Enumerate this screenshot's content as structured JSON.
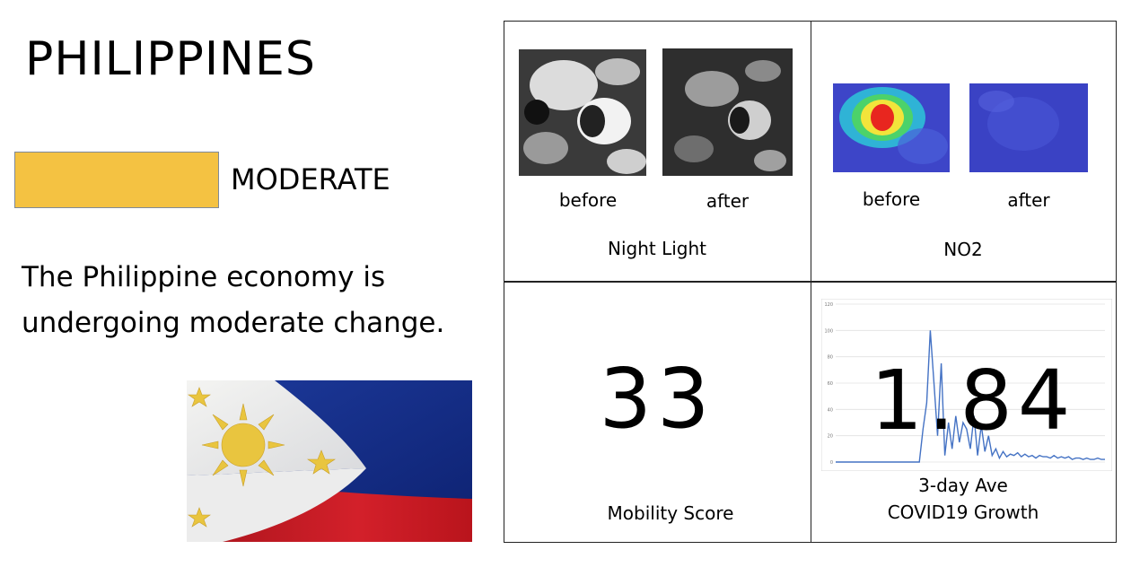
{
  "country": "PHILIPPINES",
  "status": {
    "label": "MODERATE",
    "color": "#F4C242"
  },
  "summary": "The Philippine economy is undergoing moderate change.",
  "flag": {
    "icon": "philippines-flag"
  },
  "night_light": {
    "title": "Night Light",
    "before_label": "before",
    "after_label": "after"
  },
  "no2": {
    "title": "NO2",
    "before_label": "before",
    "after_label": "after"
  },
  "mobility": {
    "value": "33",
    "label": "Mobility Score"
  },
  "covid": {
    "value": "1.84",
    "label_line1": "3-day Ave",
    "label_line2": "COVID19 Growth"
  },
  "chart_data": {
    "type": "line",
    "y_ticks": [
      0,
      20,
      40,
      60,
      80,
      100,
      120
    ],
    "ylim": [
      0,
      120
    ],
    "grid": true,
    "series": [
      {
        "values": [
          0,
          0,
          0,
          0,
          0,
          0,
          0,
          0,
          0,
          0,
          0,
          0,
          0,
          0,
          0,
          0,
          0,
          0,
          0,
          0,
          0,
          0,
          0,
          0,
          25,
          45,
          100,
          60,
          20,
          75,
          5,
          30,
          10,
          35,
          15,
          30,
          25,
          10,
          35,
          5,
          28,
          8,
          20,
          5,
          10,
          3,
          8,
          4,
          6,
          5,
          7,
          4,
          6,
          4,
          5,
          3,
          5,
          4,
          4,
          3,
          5,
          3,
          4,
          3,
          4,
          2,
          3,
          3,
          2,
          3,
          2,
          2,
          3,
          2,
          2
        ]
      }
    ]
  }
}
